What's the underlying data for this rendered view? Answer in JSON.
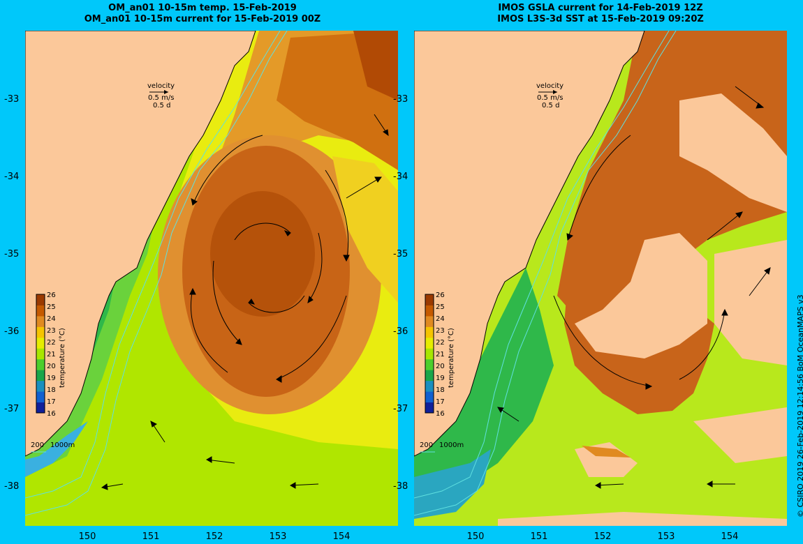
{
  "left": {
    "title_line1": "OM_an01 10-15m temp. 15-Feb-2019",
    "title_line2": "OM_an01 10-15m current for 15-Feb-2019 00Z"
  },
  "right": {
    "title_line1": "IMOS GSLA current for 14-Feb-2019 12Z",
    "title_line2": "IMOS L3S-3d SST at 15-Feb-2019 09:20Z"
  },
  "velocity_key": {
    "label": "velocity",
    "speed": "0.5 m/s",
    "time": "0.5 d"
  },
  "colorbar": {
    "label": "temperature (°C)",
    "ticks": [
      "26",
      "25",
      "24",
      "23",
      "22",
      "21",
      "20",
      "19",
      "18",
      "17",
      "16"
    ],
    "colors": [
      "#9b3a00",
      "#c55a00",
      "#e08a20",
      "#f5c400",
      "#e6ec00",
      "#a8e600",
      "#4ccf2c",
      "#1aa64a",
      "#1a8fbf",
      "#1060d0",
      "#10209a"
    ]
  },
  "isobaths": {
    "label1": "200",
    "label2": "1000m",
    "color": "#60e0e0"
  },
  "axes": {
    "y_ticks": [
      "-33",
      "-34",
      "-35",
      "-36",
      "-37",
      "-38"
    ],
    "x_ticks": [
      "150",
      "151",
      "152",
      "153",
      "154"
    ]
  },
  "credit": "© CSIRO 2019  26-Feb-2019 12:14:56 BoM OceanMAPS v3",
  "colors": {
    "land": "#fbc89a",
    "background": "#00c8fa"
  }
}
